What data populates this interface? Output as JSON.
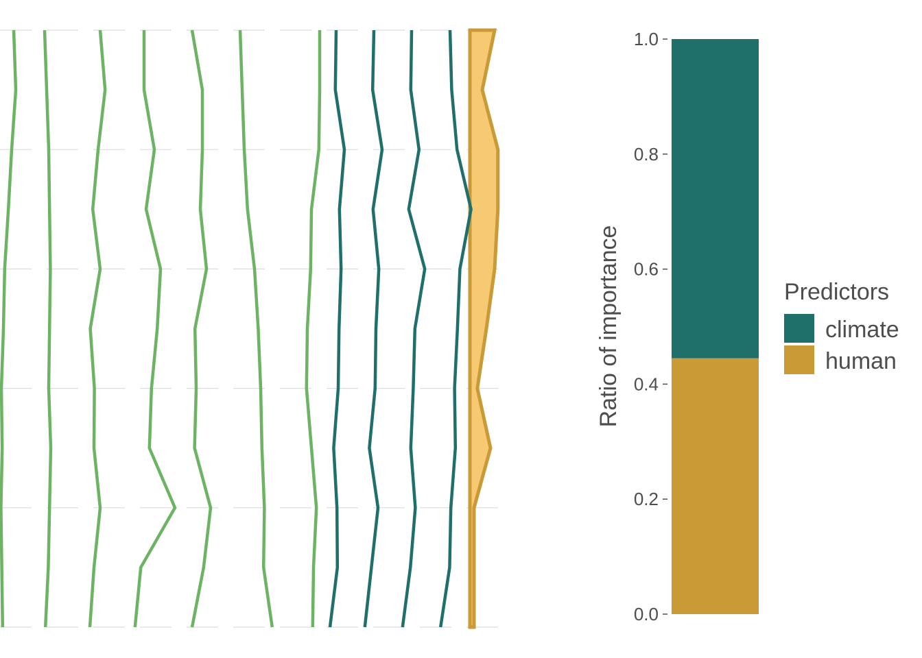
{
  "colors": {
    "background": "#ffffff",
    "grid": "#dcdcdc",
    "climate": "#1f6f6b",
    "human": "#c99a36",
    "human_fill": "#f6c972",
    "vegetation_lines": "#6cb363",
    "text": "#4d4d4d"
  },
  "chart_data": [
    {
      "type": "line",
      "panel": "left",
      "description_note": "",
      "grid": true,
      "rows": 11,
      "series": [
        {
          "group": "green",
          "x": [
            0.25,
            0.3,
            0.2,
            0.12,
            0.03,
            0.0,
            -0.05,
            -0.03,
            -0.06,
            -0.04,
            -0.02
          ]
        },
        {
          "group": "green",
          "x": [
            0.0,
            0.05,
            0.1,
            0.12,
            0.14,
            0.12,
            0.1,
            0.15,
            0.12,
            0.09,
            0.02
          ]
        },
        {
          "group": "green",
          "x": [
            0.1,
            0.22,
            0.05,
            -0.08,
            0.1,
            -0.14,
            -0.04,
            -0.05,
            0.1,
            -0.05,
            -0.15
          ]
        },
        {
          "group": "green",
          "x": [
            0.0,
            0.0,
            0.25,
            0.05,
            0.4,
            0.32,
            0.18,
            0.13,
            0.75,
            -0.08,
            -0.22
          ]
        },
        {
          "group": "green",
          "x": [
            0.0,
            0.25,
            0.25,
            0.2,
            0.35,
            0.07,
            0.1,
            0.06,
            0.45,
            0.28,
            0.0
          ]
        },
        {
          "group": "green",
          "x": [
            0.0,
            0.05,
            0.1,
            0.18,
            0.35,
            0.44,
            0.5,
            0.53,
            0.59,
            0.57,
            0.78
          ]
        },
        {
          "group": "green",
          "x": [
            0.1,
            0.1,
            0.08,
            -0.1,
            -0.12,
            -0.2,
            -0.22,
            -0.1,
            0.02,
            -0.05,
            -0.07
          ]
        },
        {
          "group": "climate",
          "x": [
            0.0,
            -0.02,
            0.2,
            0.08,
            0.12,
            0.07,
            0.05,
            -0.06,
            0.02,
            0.03,
            -0.15
          ]
        },
        {
          "group": "climate",
          "x": [
            0.0,
            -0.03,
            0.2,
            -0.02,
            0.12,
            0.05,
            0.03,
            -0.11,
            0.1,
            -0.06,
            -0.22
          ]
        },
        {
          "group": "climate",
          "x": [
            0.0,
            -0.02,
            0.18,
            -0.07,
            0.32,
            0.08,
            0.04,
            -0.02,
            0.09,
            -0.03,
            -0.22
          ]
        },
        {
          "group": "climate",
          "x": [
            0.0,
            0.04,
            0.17,
            0.51,
            0.24,
            0.18,
            0.11,
            0.13,
            0.02,
            -0.01,
            -0.23
          ]
        }
      ],
      "human_band": {
        "left": [
          0.0,
          0.0,
          0.0,
          0.0,
          0.0,
          0.0,
          0.0,
          0.0,
          0.0,
          0.0,
          0.0
        ],
        "right": [
          0.6,
          0.3,
          0.68,
          0.68,
          0.6,
          0.4,
          0.18,
          0.5,
          0.1,
          0.1,
          0.1
        ]
      }
    },
    {
      "type": "bar",
      "panel": "right",
      "stacked": true,
      "categories": [
        ""
      ],
      "series": [
        {
          "name": "human",
          "values": [
            0.445
          ]
        },
        {
          "name": "climate",
          "values": [
            0.555
          ]
        }
      ],
      "ylabel": "Ratio of importance",
      "ylim": [
        0,
        1
      ],
      "yticks": [
        "0.0",
        "0.2",
        "0.4",
        "0.6",
        "0.8",
        "1.0"
      ],
      "grid": false,
      "legend": {
        "title": "Predictors",
        "position": "right",
        "entries": [
          {
            "label": "climate",
            "color_key": "climate"
          },
          {
            "label": "human",
            "color_key": "human"
          }
        ]
      }
    }
  ]
}
